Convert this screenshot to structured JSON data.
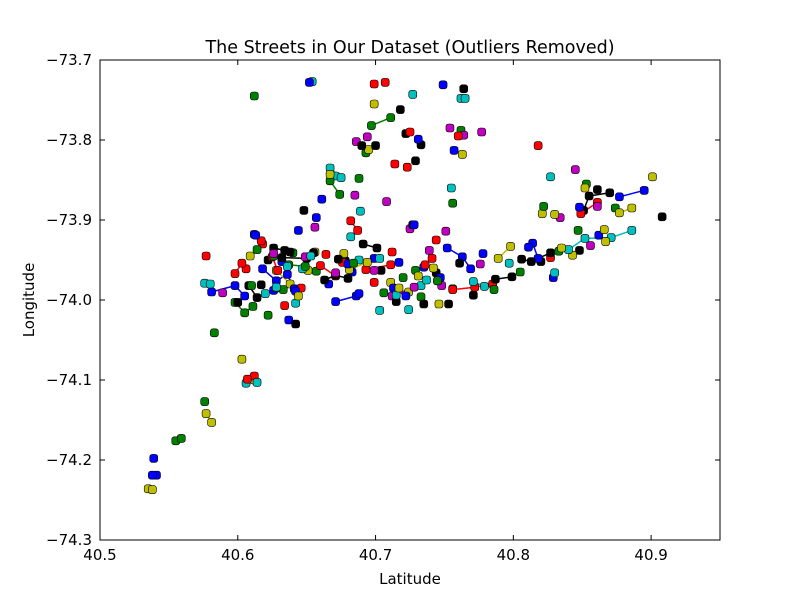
{
  "chart_data": {
    "type": "scatter",
    "title": "The Streets in Our Dataset (Outliers Removed)",
    "xlabel": "Latitude",
    "ylabel": "Longitude",
    "xlim": [
      40.5,
      40.95
    ],
    "ylim": [
      -74.3,
      -73.7
    ],
    "y_inverted": true,
    "grid": false,
    "legend": "none",
    "xticks": [
      40.5,
      40.6,
      40.7,
      40.8,
      40.9
    ],
    "xtick_labels": [
      "40.5",
      "40.6",
      "40.7",
      "40.8",
      "40.9"
    ],
    "yticks": [
      -73.7,
      -73.8,
      -73.9,
      -74.0,
      -74.1,
      -74.2,
      -74.3
    ],
    "ytick_labels": [
      "−73.7",
      "−73.8",
      "−73.9",
      "−74.0",
      "−74.1",
      "−74.2",
      "−74.3"
    ],
    "colors": {
      "b": "#0000ff",
      "g": "#008000",
      "r": "#ff0000",
      "c": "#00bfbf",
      "m": "#bf00bf",
      "y": "#bfbf00",
      "k": "#000000"
    },
    "series": [
      {
        "color": "b",
        "x": [
          40.541,
          40.538,
          40.539,
          40.581,
          40.598,
          40.605,
          40.612,
          40.618,
          40.628,
          40.636,
          40.641,
          40.644,
          40.652,
          40.657,
          40.661,
          40.666,
          40.68,
          40.683,
          40.688,
          40.699,
          40.713,
          40.722,
          40.728,
          40.735,
          40.749,
          40.752,
          40.763,
          40.769,
          40.778,
          40.811,
          40.814,
          40.818,
          40.829,
          40.848,
          40.862,
          40.877,
          40.895,
          40.613,
          40.626,
          40.632,
          40.642,
          40.637,
          40.671,
          40.686,
          40.717,
          40.731,
          40.747,
          40.757
        ],
        "y": [
          -74.219,
          -74.219,
          -74.198,
          -73.99,
          -73.982,
          -73.995,
          -73.918,
          -73.961,
          -73.976,
          -73.968,
          -73.986,
          -73.913,
          -73.728,
          -73.897,
          -73.874,
          -73.98,
          -73.955,
          -73.965,
          -73.992,
          -73.948,
          -73.985,
          -73.995,
          -73.906,
          -73.959,
          -73.731,
          -73.935,
          -73.946,
          -73.961,
          -73.942,
          -73.934,
          -73.929,
          -73.948,
          -73.972,
          -73.884,
          -73.919,
          -73.871,
          -73.863,
          -73.919,
          -73.988,
          -73.952,
          -73.989,
          -74.025,
          -74.002,
          -73.995,
          -73.953,
          -73.799,
          -73.972,
          -73.813
        ]
      },
      {
        "color": "g",
        "x": [
          40.555,
          40.559,
          40.576,
          40.583,
          40.598,
          40.605,
          40.611,
          40.614,
          40.622,
          40.628,
          40.633,
          40.637,
          40.649,
          40.657,
          40.667,
          40.674,
          40.684,
          40.693,
          40.697,
          40.711,
          40.72,
          40.733,
          40.745,
          40.756,
          40.762,
          40.786,
          40.805,
          40.822,
          40.833,
          40.847,
          40.853,
          40.874,
          40.612,
          40.626,
          40.688,
          40.706,
          40.729,
          40.756,
          40.61,
          40.64
        ],
        "y": [
          -74.176,
          -74.173,
          -74.127,
          -74.041,
          -74.003,
          -74.016,
          -74.008,
          -73.937,
          -74.019,
          -73.985,
          -73.987,
          -73.956,
          -73.958,
          -73.964,
          -73.851,
          -73.868,
          -73.954,
          -73.816,
          -73.782,
          -73.772,
          -73.972,
          -73.996,
          -73.976,
          -73.879,
          -73.788,
          -73.987,
          -73.965,
          -73.883,
          -73.939,
          -73.913,
          -73.855,
          -73.885,
          -73.745,
          -73.945,
          -73.848,
          -73.991,
          -73.963,
          -73.986,
          -73.982,
          -73.941
        ]
      },
      {
        "color": "r",
        "x": [
          40.577,
          40.598,
          40.603,
          40.607,
          40.612,
          40.617,
          40.625,
          40.629,
          40.634,
          40.646,
          40.66,
          40.671,
          40.682,
          40.687,
          40.699,
          40.707,
          40.712,
          40.723,
          40.736,
          40.744,
          40.756,
          40.772,
          40.785,
          40.818,
          40.827,
          40.849,
          40.861,
          40.618,
          40.664,
          40.693,
          40.711,
          40.725,
          40.741,
          40.76,
          40.676,
          40.606,
          40.699,
          40.714
        ],
        "y": [
          -73.945,
          -73.967,
          -73.954,
          -74.099,
          -74.095,
          -73.926,
          -73.946,
          -73.963,
          -74.007,
          -73.985,
          -73.957,
          -73.97,
          -73.901,
          -73.913,
          -73.978,
          -73.728,
          -73.94,
          -73.834,
          -73.956,
          -73.925,
          -73.987,
          -73.984,
          -73.98,
          -73.807,
          -73.947,
          -73.892,
          -73.878,
          -73.93,
          -73.943,
          -73.962,
          -73.956,
          -73.79,
          -73.948,
          -73.795,
          -73.953,
          -73.961,
          -73.73,
          -73.83
        ]
      },
      {
        "color": "c",
        "x": [
          40.576,
          40.58,
          40.606,
          40.614,
          40.62,
          40.628,
          40.636,
          40.642,
          40.653,
          40.667,
          40.675,
          40.682,
          40.689,
          40.703,
          40.715,
          40.724,
          40.737,
          40.755,
          40.762,
          40.771,
          40.779,
          40.797,
          40.827,
          40.84,
          40.852,
          40.871,
          40.886,
          40.83,
          40.654,
          40.727,
          40.688,
          40.765,
          40.647,
          40.671,
          40.733,
          40.703
        ],
        "y": [
          -73.979,
          -73.98,
          -74.104,
          -74.103,
          -73.992,
          -73.984,
          -73.958,
          -74.004,
          -73.945,
          -73.835,
          -73.847,
          -73.921,
          -73.889,
          -73.948,
          -73.994,
          -74.012,
          -73.975,
          -73.86,
          -73.748,
          -73.977,
          -73.983,
          -73.954,
          -73.846,
          -73.937,
          -73.923,
          -73.922,
          -73.913,
          -73.966,
          -73.727,
          -73.743,
          -73.95,
          -73.748,
          -73.961,
          -73.845,
          -73.982,
          -74.013
        ]
      },
      {
        "color": "m",
        "x": [
          40.589,
          40.626,
          40.649,
          40.656,
          40.671,
          40.685,
          40.699,
          40.712,
          40.728,
          40.739,
          40.751,
          40.764,
          40.776,
          40.834,
          40.845,
          40.856,
          40.861,
          40.754,
          40.708,
          40.686,
          40.725,
          40.694,
          40.748,
          40.777
        ],
        "y": [
          -73.991,
          -73.942,
          -73.946,
          -73.909,
          -73.966,
          -73.869,
          -73.963,
          -73.995,
          -73.984,
          -73.938,
          -73.914,
          -73.794,
          -73.955,
          -73.897,
          -73.837,
          -73.932,
          -73.883,
          -73.785,
          -73.877,
          -73.802,
          -73.911,
          -73.796,
          -73.982,
          -73.79
        ]
      },
      {
        "color": "y",
        "x": [
          40.535,
          40.538,
          40.577,
          40.581,
          40.603,
          40.612,
          40.628,
          40.638,
          40.644,
          40.651,
          40.667,
          40.681,
          40.694,
          40.699,
          40.717,
          40.731,
          40.746,
          40.763,
          40.789,
          40.798,
          40.821,
          40.835,
          40.843,
          40.852,
          40.866,
          40.877,
          40.886,
          40.901,
          40.609,
          40.656,
          40.677,
          40.711,
          40.742,
          40.724,
          40.83,
          40.695,
          40.867
        ],
        "y": [
          -74.236,
          -74.237,
          -74.142,
          -74.153,
          -74.074,
          -74.1,
          -73.963,
          -73.98,
          -73.995,
          -73.963,
          -73.843,
          -73.962,
          -73.953,
          -73.755,
          -73.985,
          -73.97,
          -74.005,
          -73.818,
          -73.948,
          -73.933,
          -73.892,
          -73.935,
          -73.944,
          -73.86,
          -73.912,
          -73.891,
          -73.885,
          -73.846,
          -73.945,
          -73.94,
          -73.942,
          -73.978,
          -73.96,
          -73.99,
          -73.893,
          -73.812,
          -73.927
        ]
      },
      {
        "color": "k",
        "x": [
          40.6,
          40.608,
          40.614,
          40.622,
          40.626,
          40.634,
          40.638,
          40.642,
          40.648,
          40.655,
          40.663,
          40.671,
          40.68,
          40.691,
          40.701,
          40.715,
          40.727,
          40.735,
          40.744,
          40.753,
          40.761,
          40.771,
          40.787,
          40.799,
          40.806,
          40.813,
          40.827,
          40.851,
          40.855,
          40.87,
          40.908,
          40.65,
          40.632,
          40.617,
          40.673,
          40.678,
          40.69,
          40.704,
          40.718,
          40.729,
          40.733,
          40.745,
          40.764,
          40.82,
          40.848,
          40.861,
          40.722,
          40.7
        ],
        "y": [
          -74.003,
          -73.982,
          -73.997,
          -73.95,
          -73.935,
          -73.938,
          -73.94,
          -74.03,
          -73.888,
          -73.941,
          -73.975,
          -73.969,
          -73.973,
          -73.93,
          -73.935,
          -74.002,
          -73.906,
          -74.005,
          -73.966,
          -74.005,
          -73.954,
          -73.994,
          -73.974,
          -73.971,
          -73.949,
          -73.952,
          -73.941,
          -73.888,
          -73.87,
          -73.866,
          -73.896,
          -73.948,
          -73.947,
          -73.981,
          -73.949,
          -73.951,
          -73.807,
          -73.963,
          -73.762,
          -73.826,
          -73.806,
          -73.976,
          -73.736,
          -73.952,
          -73.938,
          -73.862,
          -73.792,
          -73.807
        ]
      }
    ]
  }
}
